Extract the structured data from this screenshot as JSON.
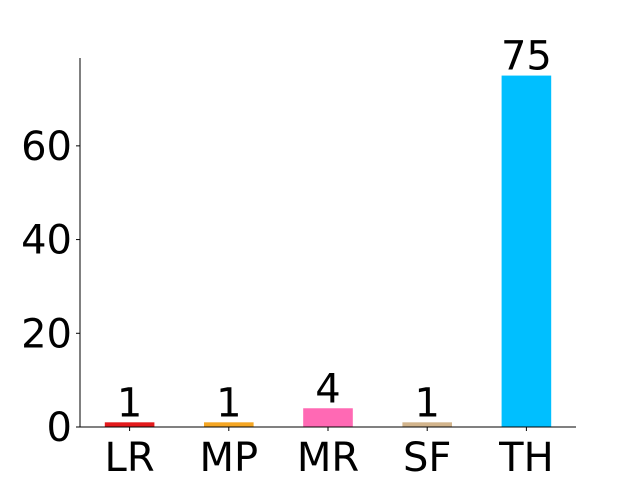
{
  "chart_data": {
    "type": "bar",
    "title": "",
    "xlabel": "",
    "ylabel": "",
    "categories": [
      "LR",
      "MP",
      "MR",
      "SF",
      "TH"
    ],
    "values": [
      1,
      1,
      4,
      1,
      75
    ],
    "data_labels": [
      "1",
      "1",
      "4",
      "1",
      "75"
    ],
    "colors": [
      "#e31a1c",
      "#f5a623",
      "#ff69b4",
      "#d2b48c",
      "#00bfff"
    ],
    "ylim": [
      0,
      78.75
    ],
    "yticks": [
      0,
      20,
      40,
      60
    ],
    "ytick_labels": [
      "0",
      "20",
      "40",
      "60"
    ],
    "grid": false,
    "legend": "none"
  }
}
